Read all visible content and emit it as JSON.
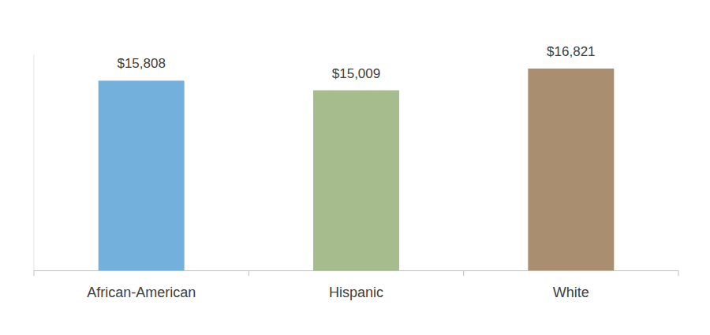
{
  "chart_data": {
    "type": "bar",
    "categories": [
      "African-American",
      "Hispanic",
      "White"
    ],
    "values": [
      15808,
      15009,
      16821
    ],
    "value_labels": [
      "$15,808",
      "$15,009",
      "$16,821"
    ],
    "colors": [
      "#74b0dc",
      "#a6bc8c",
      "#aa8e70"
    ],
    "ylim": [
      0,
      18000
    ],
    "data_labels": true,
    "tick_labels": "x",
    "grid": false
  }
}
